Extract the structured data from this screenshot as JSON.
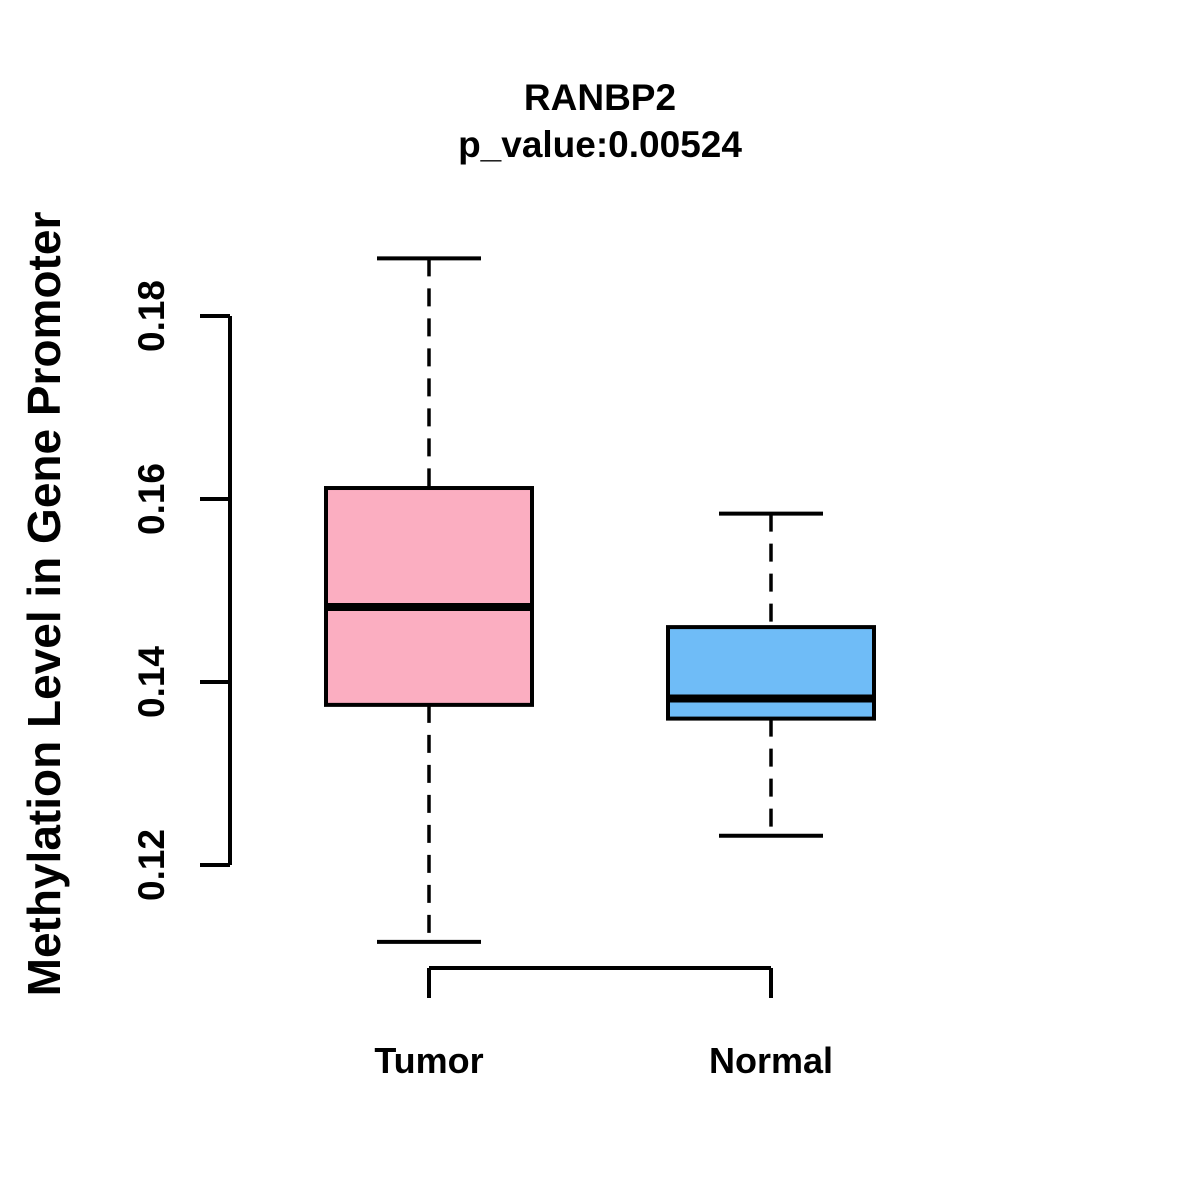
{
  "title": "RANBP2",
  "subtitle": "p_value:0.00524",
  "chart_data": {
    "type": "boxplot",
    "title": "RANBP2",
    "subtitle": "p_value:0.00524",
    "ylabel": "Methylation Level in Gene Promoter",
    "xlabel": "",
    "ylim": [
      0.105,
      0.192
    ],
    "yticks": [
      0.12,
      0.14,
      0.16,
      0.18
    ],
    "ytick_labels": [
      "0.12",
      "0.14",
      "0.16",
      "0.18"
    ],
    "grid": false,
    "legend": "none",
    "groups": [
      {
        "label": "Tumor",
        "box_color": "#FBAEC1",
        "whisker_low": 0.1116,
        "q1": 0.1375,
        "median": 0.1482,
        "q3": 0.1612,
        "whisker_high": 0.1863,
        "outliers": []
      },
      {
        "label": "Normal",
        "box_color": "#6FBCF7",
        "whisker_low": 0.1232,
        "q1": 0.136,
        "median": 0.1382,
        "q3": 0.146,
        "whisker_high": 0.1584,
        "outliers": []
      }
    ],
    "colors": {
      "tumor_fill": "#FBAEC1",
      "normal_fill": "#6FBCF7",
      "stroke": "#000000",
      "background": "#FFFFFF"
    }
  }
}
